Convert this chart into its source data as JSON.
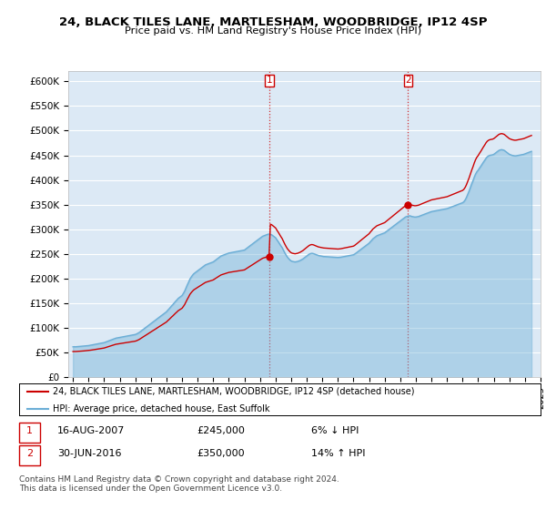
{
  "title1": "24, BLACK TILES LANE, MARTLESHAM, WOODBRIDGE, IP12 4SP",
  "title2": "Price paid vs. HM Land Registry's House Price Index (HPI)",
  "sale1_date": 2007.62,
  "sale1_price": 245000,
  "sale1_label": "1",
  "sale2_date": 2016.5,
  "sale2_price": 350000,
  "sale2_label": "2",
  "hpi_color": "#6baed6",
  "sold_color": "#cc0000",
  "plot_bg": "#dce9f5",
  "legend_label1": "24, BLACK TILES LANE, MARTLESHAM, WOODBRIDGE, IP12 4SP (detached house)",
  "legend_label2": "HPI: Average price, detached house, East Suffolk",
  "footer": "Contains HM Land Registry data © Crown copyright and database right 2024.\nThis data is licensed under the Open Government Licence v3.0.",
  "ylim": [
    0,
    620000
  ],
  "yticks": [
    0,
    50000,
    100000,
    150000,
    200000,
    250000,
    300000,
    350000,
    400000,
    450000,
    500000,
    550000,
    600000
  ],
  "ytick_labels": [
    "£0",
    "£50K",
    "£100K",
    "£150K",
    "£200K",
    "£250K",
    "£300K",
    "£350K",
    "£400K",
    "£450K",
    "£500K",
    "£550K",
    "£600K"
  ],
  "xtick_start": 1995,
  "xtick_end": 2025,
  "hpi_data": [
    [
      1995.0,
      62000
    ],
    [
      1995.08,
      62200
    ],
    [
      1995.17,
      62100
    ],
    [
      1995.25,
      62300
    ],
    [
      1995.33,
      62500
    ],
    [
      1995.42,
      62800
    ],
    [
      1995.5,
      63000
    ],
    [
      1995.58,
      63200
    ],
    [
      1995.67,
      63500
    ],
    [
      1995.75,
      63800
    ],
    [
      1995.83,
      64000
    ],
    [
      1995.92,
      64200
    ],
    [
      1996.0,
      64500
    ],
    [
      1996.08,
      65000
    ],
    [
      1996.17,
      65500
    ],
    [
      1996.25,
      66000
    ],
    [
      1996.33,
      66500
    ],
    [
      1996.42,
      67000
    ],
    [
      1996.5,
      67500
    ],
    [
      1996.58,
      68000
    ],
    [
      1996.67,
      68500
    ],
    [
      1996.75,
      69000
    ],
    [
      1996.83,
      69500
    ],
    [
      1996.92,
      70000
    ],
    [
      1997.0,
      70500
    ],
    [
      1997.08,
      71500
    ],
    [
      1997.17,
      72500
    ],
    [
      1997.25,
      73500
    ],
    [
      1997.33,
      74500
    ],
    [
      1997.42,
      75500
    ],
    [
      1997.5,
      76500
    ],
    [
      1997.58,
      77500
    ],
    [
      1997.67,
      78500
    ],
    [
      1997.75,
      79500
    ],
    [
      1997.83,
      80000
    ],
    [
      1997.92,
      80500
    ],
    [
      1998.0,
      81000
    ],
    [
      1998.08,
      81500
    ],
    [
      1998.17,
      82000
    ],
    [
      1998.25,
      82500
    ],
    [
      1998.33,
      83000
    ],
    [
      1998.42,
      83500
    ],
    [
      1998.5,
      84000
    ],
    [
      1998.58,
      84500
    ],
    [
      1998.67,
      85000
    ],
    [
      1998.75,
      85500
    ],
    [
      1998.83,
      86000
    ],
    [
      1998.92,
      86500
    ],
    [
      1999.0,
      87000
    ],
    [
      1999.08,
      88000
    ],
    [
      1999.17,
      89500
    ],
    [
      1999.25,
      91000
    ],
    [
      1999.33,
      93000
    ],
    [
      1999.42,
      95000
    ],
    [
      1999.5,
      97000
    ],
    [
      1999.58,
      99000
    ],
    [
      1999.67,
      101000
    ],
    [
      1999.75,
      103000
    ],
    [
      1999.83,
      105000
    ],
    [
      1999.92,
      107000
    ],
    [
      2000.0,
      109000
    ],
    [
      2000.08,
      111000
    ],
    [
      2000.17,
      113000
    ],
    [
      2000.25,
      115000
    ],
    [
      2000.33,
      117000
    ],
    [
      2000.42,
      119000
    ],
    [
      2000.5,
      121000
    ],
    [
      2000.58,
      123000
    ],
    [
      2000.67,
      125000
    ],
    [
      2000.75,
      127000
    ],
    [
      2000.83,
      129000
    ],
    [
      2000.92,
      131000
    ],
    [
      2001.0,
      133000
    ],
    [
      2001.08,
      136000
    ],
    [
      2001.17,
      139000
    ],
    [
      2001.25,
      142000
    ],
    [
      2001.33,
      145000
    ],
    [
      2001.42,
      148000
    ],
    [
      2001.5,
      151000
    ],
    [
      2001.58,
      154000
    ],
    [
      2001.67,
      157000
    ],
    [
      2001.75,
      160000
    ],
    [
      2001.83,
      162000
    ],
    [
      2001.92,
      164000
    ],
    [
      2002.0,
      166000
    ],
    [
      2002.08,
      170000
    ],
    [
      2002.17,
      175000
    ],
    [
      2002.25,
      181000
    ],
    [
      2002.33,
      187000
    ],
    [
      2002.42,
      193000
    ],
    [
      2002.5,
      199000
    ],
    [
      2002.58,
      203000
    ],
    [
      2002.67,
      207000
    ],
    [
      2002.75,
      210000
    ],
    [
      2002.83,
      212000
    ],
    [
      2002.92,
      214000
    ],
    [
      2003.0,
      216000
    ],
    [
      2003.08,
      218000
    ],
    [
      2003.17,
      220000
    ],
    [
      2003.25,
      222000
    ],
    [
      2003.33,
      224000
    ],
    [
      2003.42,
      226000
    ],
    [
      2003.5,
      228000
    ],
    [
      2003.58,
      229000
    ],
    [
      2003.67,
      230000
    ],
    [
      2003.75,
      231000
    ],
    [
      2003.83,
      232000
    ],
    [
      2003.92,
      233000
    ],
    [
      2004.0,
      234000
    ],
    [
      2004.08,
      236000
    ],
    [
      2004.17,
      238000
    ],
    [
      2004.25,
      240000
    ],
    [
      2004.33,
      242000
    ],
    [
      2004.42,
      244000
    ],
    [
      2004.5,
      246000
    ],
    [
      2004.58,
      247000
    ],
    [
      2004.67,
      248000
    ],
    [
      2004.75,
      249000
    ],
    [
      2004.83,
      250000
    ],
    [
      2004.92,
      251000
    ],
    [
      2005.0,
      252000
    ],
    [
      2005.08,
      252500
    ],
    [
      2005.17,
      253000
    ],
    [
      2005.25,
      253500
    ],
    [
      2005.33,
      254000
    ],
    [
      2005.42,
      254500
    ],
    [
      2005.5,
      255000
    ],
    [
      2005.58,
      255500
    ],
    [
      2005.67,
      256000
    ],
    [
      2005.75,
      256500
    ],
    [
      2005.83,
      257000
    ],
    [
      2005.92,
      257500
    ],
    [
      2006.0,
      258000
    ],
    [
      2006.08,
      260000
    ],
    [
      2006.17,
      262000
    ],
    [
      2006.25,
      264000
    ],
    [
      2006.33,
      266000
    ],
    [
      2006.42,
      268000
    ],
    [
      2006.5,
      270000
    ],
    [
      2006.58,
      272000
    ],
    [
      2006.67,
      274000
    ],
    [
      2006.75,
      276000
    ],
    [
      2006.83,
      278000
    ],
    [
      2006.92,
      280000
    ],
    [
      2007.0,
      282000
    ],
    [
      2007.08,
      284000
    ],
    [
      2007.17,
      286000
    ],
    [
      2007.25,
      287000
    ],
    [
      2007.33,
      288000
    ],
    [
      2007.42,
      289000
    ],
    [
      2007.5,
      290000
    ],
    [
      2007.58,
      290500
    ],
    [
      2007.67,
      290000
    ],
    [
      2007.75,
      289000
    ],
    [
      2007.83,
      287000
    ],
    [
      2007.92,
      285000
    ],
    [
      2008.0,
      283000
    ],
    [
      2008.08,
      279000
    ],
    [
      2008.17,
      275000
    ],
    [
      2008.25,
      271000
    ],
    [
      2008.33,
      267000
    ],
    [
      2008.42,
      263000
    ],
    [
      2008.5,
      258000
    ],
    [
      2008.58,
      253000
    ],
    [
      2008.67,
      248000
    ],
    [
      2008.75,
      244000
    ],
    [
      2008.83,
      241000
    ],
    [
      2008.92,
      238000
    ],
    [
      2009.0,
      236000
    ],
    [
      2009.08,
      235000
    ],
    [
      2009.17,
      234500
    ],
    [
      2009.25,
      234000
    ],
    [
      2009.33,
      234500
    ],
    [
      2009.42,
      235000
    ],
    [
      2009.5,
      236000
    ],
    [
      2009.58,
      237000
    ],
    [
      2009.67,
      238500
    ],
    [
      2009.75,
      240000
    ],
    [
      2009.83,
      242000
    ],
    [
      2009.92,
      244000
    ],
    [
      2010.0,
      246000
    ],
    [
      2010.08,
      248000
    ],
    [
      2010.17,
      250000
    ],
    [
      2010.25,
      251000
    ],
    [
      2010.33,
      251500
    ],
    [
      2010.42,
      251000
    ],
    [
      2010.5,
      250000
    ],
    [
      2010.58,
      249000
    ],
    [
      2010.67,
      248000
    ],
    [
      2010.75,
      247000
    ],
    [
      2010.83,
      246500
    ],
    [
      2010.92,
      246000
    ],
    [
      2011.0,
      245500
    ],
    [
      2011.08,
      245000
    ],
    [
      2011.17,
      244800
    ],
    [
      2011.25,
      244600
    ],
    [
      2011.33,
      244400
    ],
    [
      2011.42,
      244200
    ],
    [
      2011.5,
      244000
    ],
    [
      2011.58,
      243800
    ],
    [
      2011.67,
      243600
    ],
    [
      2011.75,
      243400
    ],
    [
      2011.83,
      243200
    ],
    [
      2011.92,
      243000
    ],
    [
      2012.0,
      243000
    ],
    [
      2012.08,
      243200
    ],
    [
      2012.17,
      243500
    ],
    [
      2012.25,
      244000
    ],
    [
      2012.33,
      244500
    ],
    [
      2012.42,
      245000
    ],
    [
      2012.5,
      245500
    ],
    [
      2012.58,
      246000
    ],
    [
      2012.67,
      246500
    ],
    [
      2012.75,
      247000
    ],
    [
      2012.83,
      247500
    ],
    [
      2012.92,
      248000
    ],
    [
      2013.0,
      248500
    ],
    [
      2013.08,
      250000
    ],
    [
      2013.17,
      252000
    ],
    [
      2013.25,
      254000
    ],
    [
      2013.33,
      256000
    ],
    [
      2013.42,
      258000
    ],
    [
      2013.5,
      260000
    ],
    [
      2013.58,
      262000
    ],
    [
      2013.67,
      264000
    ],
    [
      2013.75,
      266000
    ],
    [
      2013.83,
      268000
    ],
    [
      2013.92,
      270000
    ],
    [
      2014.0,
      272000
    ],
    [
      2014.08,
      275000
    ],
    [
      2014.17,
      278000
    ],
    [
      2014.25,
      281000
    ],
    [
      2014.33,
      283000
    ],
    [
      2014.42,
      285000
    ],
    [
      2014.5,
      287000
    ],
    [
      2014.58,
      288000
    ],
    [
      2014.67,
      289000
    ],
    [
      2014.75,
      290000
    ],
    [
      2014.83,
      291000
    ],
    [
      2014.92,
      292000
    ],
    [
      2015.0,
      293000
    ],
    [
      2015.08,
      295000
    ],
    [
      2015.17,
      297000
    ],
    [
      2015.25,
      299000
    ],
    [
      2015.33,
      301000
    ],
    [
      2015.42,
      303000
    ],
    [
      2015.5,
      305000
    ],
    [
      2015.58,
      307000
    ],
    [
      2015.67,
      309000
    ],
    [
      2015.75,
      311000
    ],
    [
      2015.83,
      313000
    ],
    [
      2015.92,
      315000
    ],
    [
      2016.0,
      317000
    ],
    [
      2016.08,
      319000
    ],
    [
      2016.17,
      321000
    ],
    [
      2016.25,
      323000
    ],
    [
      2016.33,
      325000
    ],
    [
      2016.42,
      326000
    ],
    [
      2016.5,
      327000
    ],
    [
      2016.58,
      327500
    ],
    [
      2016.67,
      327000
    ],
    [
      2016.75,
      326000
    ],
    [
      2016.83,
      325500
    ],
    [
      2016.92,
      325000
    ],
    [
      2017.0,
      325000
    ],
    [
      2017.08,
      325500
    ],
    [
      2017.17,
      326000
    ],
    [
      2017.25,
      327000
    ],
    [
      2017.33,
      328000
    ],
    [
      2017.42,
      329000
    ],
    [
      2017.5,
      330000
    ],
    [
      2017.58,
      331000
    ],
    [
      2017.67,
      332000
    ],
    [
      2017.75,
      333000
    ],
    [
      2017.83,
      334000
    ],
    [
      2017.92,
      335000
    ],
    [
      2018.0,
      336000
    ],
    [
      2018.08,
      336500
    ],
    [
      2018.17,
      337000
    ],
    [
      2018.25,
      337500
    ],
    [
      2018.33,
      338000
    ],
    [
      2018.42,
      338500
    ],
    [
      2018.5,
      339000
    ],
    [
      2018.58,
      339500
    ],
    [
      2018.67,
      340000
    ],
    [
      2018.75,
      340500
    ],
    [
      2018.83,
      341000
    ],
    [
      2018.92,
      341500
    ],
    [
      2019.0,
      342000
    ],
    [
      2019.08,
      343000
    ],
    [
      2019.17,
      344000
    ],
    [
      2019.25,
      345000
    ],
    [
      2019.33,
      346000
    ],
    [
      2019.42,
      347000
    ],
    [
      2019.5,
      348000
    ],
    [
      2019.58,
      349000
    ],
    [
      2019.67,
      350000
    ],
    [
      2019.75,
      351000
    ],
    [
      2019.83,
      352000
    ],
    [
      2019.92,
      353000
    ],
    [
      2020.0,
      354000
    ],
    [
      2020.08,
      356000
    ],
    [
      2020.17,
      360000
    ],
    [
      2020.25,
      365000
    ],
    [
      2020.33,
      371000
    ],
    [
      2020.42,
      378000
    ],
    [
      2020.5,
      385000
    ],
    [
      2020.58,
      392000
    ],
    [
      2020.67,
      399000
    ],
    [
      2020.75,
      406000
    ],
    [
      2020.83,
      412000
    ],
    [
      2020.92,
      417000
    ],
    [
      2021.0,
      420000
    ],
    [
      2021.08,
      424000
    ],
    [
      2021.17,
      428000
    ],
    [
      2021.25,
      432000
    ],
    [
      2021.33,
      436000
    ],
    [
      2021.42,
      440000
    ],
    [
      2021.5,
      444000
    ],
    [
      2021.58,
      447000
    ],
    [
      2021.67,
      449000
    ],
    [
      2021.75,
      450000
    ],
    [
      2021.83,
      450500
    ],
    [
      2021.92,
      451000
    ],
    [
      2022.0,
      452000
    ],
    [
      2022.08,
      454000
    ],
    [
      2022.17,
      456000
    ],
    [
      2022.25,
      458000
    ],
    [
      2022.33,
      460000
    ],
    [
      2022.42,
      461000
    ],
    [
      2022.5,
      461500
    ],
    [
      2022.58,
      461000
    ],
    [
      2022.67,
      460000
    ],
    [
      2022.75,
      458000
    ],
    [
      2022.83,
      456000
    ],
    [
      2022.92,
      454000
    ],
    [
      2023.0,
      452000
    ],
    [
      2023.08,
      451000
    ],
    [
      2023.17,
      450000
    ],
    [
      2023.25,
      449500
    ],
    [
      2023.33,
      449000
    ],
    [
      2023.42,
      449000
    ],
    [
      2023.5,
      449500
    ],
    [
      2023.58,
      450000
    ],
    [
      2023.67,
      450500
    ],
    [
      2023.75,
      451000
    ],
    [
      2023.83,
      451500
    ],
    [
      2023.92,
      452000
    ],
    [
      2024.0,
      453000
    ],
    [
      2024.08,
      454000
    ],
    [
      2024.17,
      455000
    ],
    [
      2024.25,
      456000
    ],
    [
      2024.33,
      457000
    ],
    [
      2024.42,
      458000
    ]
  ]
}
